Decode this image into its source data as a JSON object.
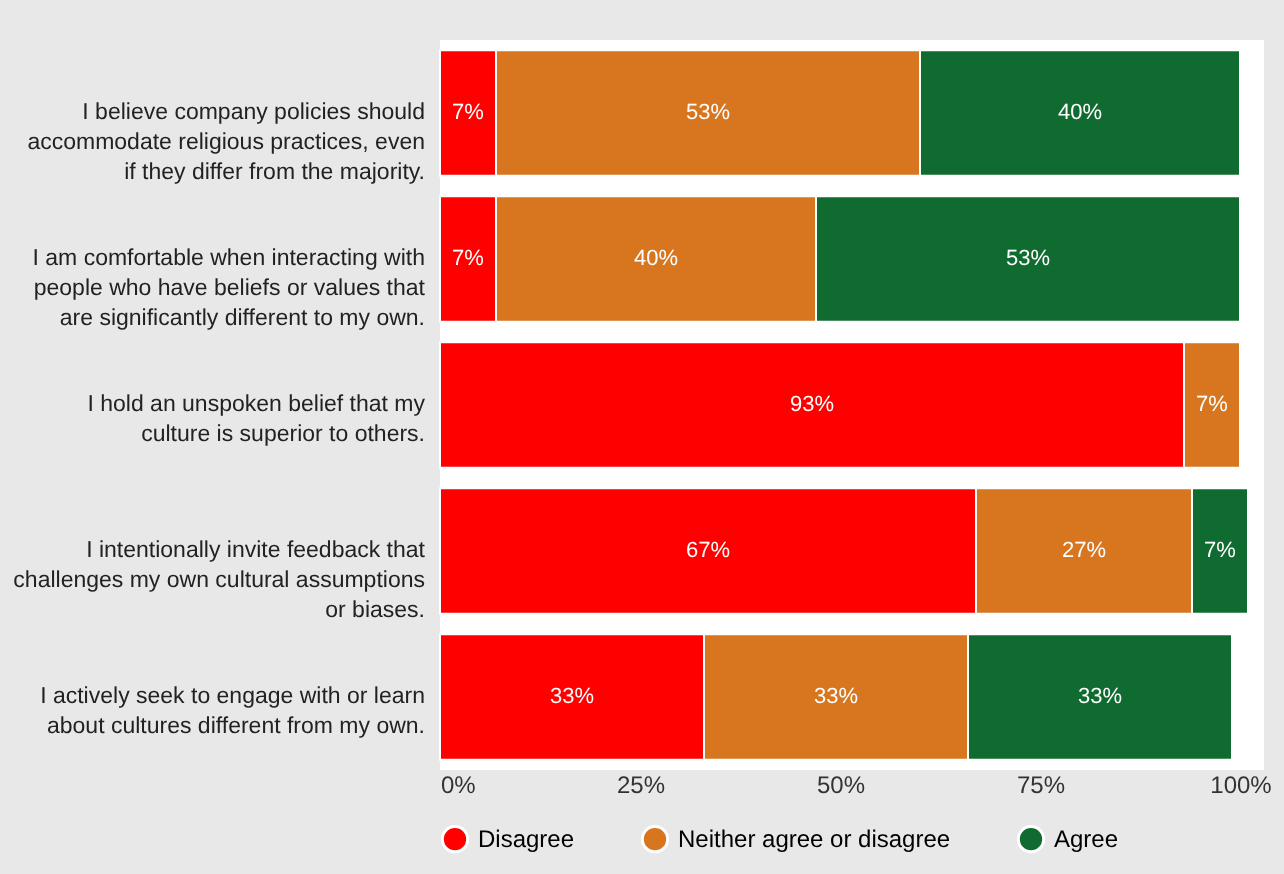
{
  "chart_data": {
    "type": "bar",
    "orientation": "horizontal",
    "stacked": true,
    "categories": [
      "I believe company policies should accommodate religious practices, even if they differ from the majority.",
      "I am comfortable when interacting with people who have beliefs or values that are significantly different to my own.",
      "I hold an unspoken belief that my culture is superior to others.",
      "I intentionally invite feedback that challenges my own cultural assumptions or biases.",
      "I actively seek to engage with or learn about cultures different from my own."
    ],
    "series": [
      {
        "name": "Disagree",
        "color": "#ff0000",
        "values": [
          7,
          7,
          93,
          67,
          33
        ],
        "value_labels": [
          "7%",
          "7%",
          "93%",
          "67%",
          "33%"
        ]
      },
      {
        "name": "Neither agree or disagree",
        "color": "#d7761f",
        "values": [
          53,
          40,
          7,
          27,
          33
        ],
        "value_labels": [
          "53%",
          "40%",
          "7%",
          "27%",
          "33%"
        ]
      },
      {
        "name": "Agree",
        "color": "#0f6b2f",
        "values": [
          40,
          53,
          null,
          7,
          33
        ],
        "value_labels": [
          "40%",
          "53%",
          null,
          "7%",
          "33%"
        ]
      }
    ],
    "xlim": [
      0,
      103
    ],
    "xticks": [
      {
        "value": 0,
        "label": "0%"
      },
      {
        "value": 25,
        "label": "25%"
      },
      {
        "value": 50,
        "label": "50%"
      },
      {
        "value": 75,
        "label": "75%"
      },
      {
        "value": 100,
        "label": "100%"
      }
    ],
    "grid": false,
    "legend": "bottom"
  }
}
